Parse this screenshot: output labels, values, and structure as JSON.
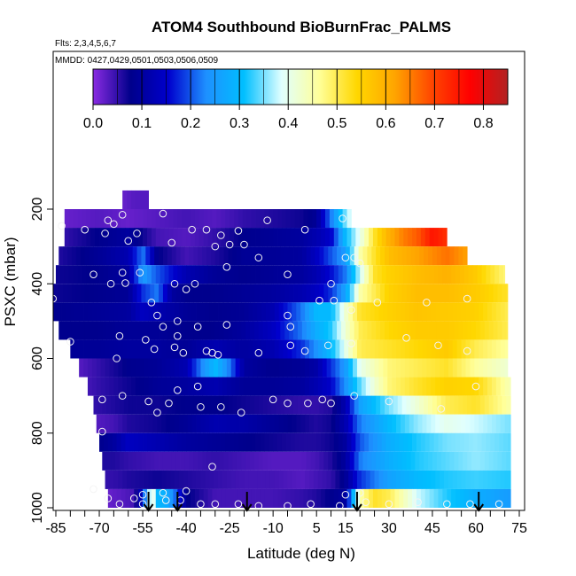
{
  "chart_data": {
    "type": "heatmap",
    "title": "ATOM4 Southbound BioBurnFrac_PALMS",
    "flights_note": "Flts: 2,3,4,5,6,7",
    "dates_note": "MMDD: 0427,0429,0501,0503,0506,0509",
    "xlabel": "Latitude (deg N)",
    "ylabel": "PSXC (mbar)",
    "xlim": [
      -88,
      78
    ],
    "ylim": [
      1010,
      130
    ],
    "x_ticks": [
      -85,
      -70,
      -55,
      -40,
      -25,
      -10,
      5,
      15,
      30,
      45,
      60,
      75
    ],
    "x_minor_ticks": [
      -80,
      -75,
      -65,
      -60,
      -50,
      -45,
      -35,
      -30,
      -20,
      -15,
      -5,
      0,
      10,
      20,
      25,
      35,
      40,
      50,
      55,
      65,
      70
    ],
    "y_ticks": [
      200,
      400,
      600,
      800,
      1000
    ],
    "colorbar": {
      "range": [
        0,
        0.85
      ],
      "ticks": [
        0.0,
        0.1,
        0.2,
        0.3,
        0.4,
        0.5,
        0.6,
        0.7,
        0.8
      ],
      "tick_labels": [
        "0.0",
        "0.1",
        "0.2",
        "0.3",
        "0.4",
        "0.5",
        "0.6",
        "0.7",
        "0.8"
      ],
      "colors": [
        "#8a2be2",
        "#00008b",
        "#0000cd",
        "#1e90ff",
        "#00bfff",
        "#e0ffff",
        "#ffff99",
        "#ffd700",
        "#ffa500",
        "#ff4500",
        "#ff0000",
        "#b22222"
      ]
    },
    "pressure_levels": [
      175,
      225,
      275,
      325,
      375,
      425,
      475,
      525,
      575,
      625,
      675,
      725,
      775,
      825,
      875,
      925,
      975
    ],
    "latitude_extents": [
      [
        -62,
        -53
      ],
      [
        -82,
        17
      ],
      [
        -82,
        50
      ],
      [
        -84,
        57
      ],
      [
        -85,
        70
      ],
      [
        -87,
        71
      ],
      [
        -86,
        71
      ],
      [
        -84,
        71
      ],
      [
        -80,
        71
      ],
      [
        -77,
        71
      ],
      [
        -74,
        72
      ],
      [
        -72,
        72
      ],
      [
        -71,
        72
      ],
      [
        -70,
        72
      ],
      [
        -69,
        72
      ],
      [
        -68,
        72
      ],
      [
        -67,
        72
      ]
    ],
    "profile_arrows_lat": [
      -53,
      -43,
      -19,
      19,
      61
    ],
    "series": [
      {
        "name": "175 mbar",
        "x": [
          -62,
          -58,
          -53
        ],
        "values": [
          0.02,
          0.03,
          0.03
        ]
      },
      {
        "name": "225 mbar",
        "x": [
          -82,
          -70,
          -60,
          -50,
          -40,
          -30,
          -20,
          -10,
          0,
          5,
          10,
          15,
          17
        ],
        "values": [
          0.02,
          0.03,
          0.02,
          0.03,
          0.04,
          0.03,
          0.05,
          0.06,
          0.07,
          0.09,
          0.22,
          0.35,
          0.4
        ]
      },
      {
        "name": "275 mbar",
        "x": [
          -82,
          -70,
          -60,
          -50,
          -40,
          -30,
          -20,
          -10,
          0,
          5,
          10,
          15,
          20,
          25,
          30,
          35,
          40,
          45,
          50
        ],
        "values": [
          0.05,
          0.08,
          0.1,
          0.04,
          0.03,
          0.05,
          0.08,
          0.09,
          0.1,
          0.12,
          0.15,
          0.3,
          0.4,
          0.52,
          0.6,
          0.65,
          0.68,
          0.75,
          0.72
        ]
      },
      {
        "name": "325 mbar",
        "x": [
          -84,
          -70,
          -60,
          -55,
          -50,
          -40,
          -30,
          -20,
          -10,
          0,
          5,
          10,
          15,
          20,
          25,
          30,
          40,
          50,
          57
        ],
        "values": [
          0.06,
          0.09,
          0.12,
          0.22,
          0.08,
          0.04,
          0.06,
          0.09,
          0.09,
          0.1,
          0.14,
          0.2,
          0.25,
          0.45,
          0.52,
          0.58,
          0.62,
          0.66,
          0.62
        ]
      },
      {
        "name": "375 mbar",
        "x": [
          -85,
          -70,
          -60,
          -55,
          -50,
          -40,
          -30,
          -20,
          -10,
          0,
          5,
          10,
          15,
          20,
          25,
          30,
          40,
          50,
          60,
          70
        ],
        "values": [
          0.07,
          0.08,
          0.1,
          0.25,
          0.2,
          0.12,
          0.09,
          0.08,
          0.09,
          0.1,
          0.12,
          0.16,
          0.22,
          0.38,
          0.52,
          0.55,
          0.58,
          0.6,
          0.56,
          0.48
        ]
      },
      {
        "name": "425 mbar",
        "x": [
          -87,
          -70,
          -60,
          -55,
          -50,
          -45,
          -40,
          -30,
          -20,
          -10,
          0,
          5,
          10,
          15,
          20,
          30,
          40,
          50,
          60,
          71
        ],
        "values": [
          0.07,
          0.08,
          0.09,
          0.18,
          0.22,
          0.1,
          0.08,
          0.08,
          0.09,
          0.1,
          0.12,
          0.14,
          0.18,
          0.26,
          0.45,
          0.55,
          0.58,
          0.58,
          0.56,
          0.52
        ]
      },
      {
        "name": "475 mbar",
        "x": [
          -86,
          -70,
          -60,
          -55,
          -50,
          -40,
          -30,
          -20,
          -10,
          0,
          5,
          10,
          15,
          20,
          30,
          40,
          50,
          60,
          71
        ],
        "values": [
          0.08,
          0.09,
          0.1,
          0.14,
          0.12,
          0.09,
          0.08,
          0.09,
          0.12,
          0.22,
          0.3,
          0.3,
          0.42,
          0.52,
          0.55,
          0.57,
          0.56,
          0.55,
          0.5
        ]
      },
      {
        "name": "525 mbar",
        "x": [
          -84,
          -70,
          -60,
          -50,
          -40,
          -30,
          -20,
          -10,
          0,
          5,
          10,
          15,
          20,
          30,
          40,
          50,
          60,
          71
        ],
        "values": [
          0.08,
          0.08,
          0.09,
          0.09,
          0.08,
          0.08,
          0.1,
          0.14,
          0.22,
          0.28,
          0.32,
          0.42,
          0.5,
          0.54,
          0.56,
          0.56,
          0.54,
          0.5
        ]
      },
      {
        "name": "575 mbar",
        "x": [
          -80,
          -70,
          -60,
          -50,
          -40,
          -30,
          -20,
          -10,
          0,
          5,
          10,
          15,
          20,
          30,
          40,
          50,
          60,
          71
        ],
        "values": [
          0.09,
          0.09,
          0.1,
          0.1,
          0.09,
          0.12,
          0.1,
          0.12,
          0.18,
          0.24,
          0.3,
          0.4,
          0.5,
          0.52,
          0.54,
          0.56,
          0.5,
          0.46
        ]
      },
      {
        "name": "625 mbar",
        "x": [
          -77,
          -70,
          -60,
          -50,
          -40,
          -35,
          -30,
          -25,
          -20,
          -10,
          0,
          5,
          10,
          15,
          20,
          30,
          40,
          50,
          60,
          71
        ],
        "values": [
          0.03,
          0.05,
          0.08,
          0.09,
          0.12,
          0.22,
          0.3,
          0.22,
          0.1,
          0.08,
          0.09,
          0.11,
          0.18,
          0.25,
          0.4,
          0.48,
          0.5,
          0.52,
          0.46,
          0.42
        ]
      },
      {
        "name": "675 mbar",
        "x": [
          -74,
          -70,
          -60,
          -50,
          -40,
          -30,
          -20,
          -10,
          0,
          5,
          10,
          15,
          20,
          25,
          30,
          40,
          50,
          60,
          72
        ],
        "values": [
          0.04,
          0.05,
          0.07,
          0.09,
          0.1,
          0.12,
          0.09,
          0.09,
          0.1,
          0.12,
          0.15,
          0.24,
          0.34,
          0.42,
          0.48,
          0.52,
          0.55,
          0.54,
          0.44
        ]
      },
      {
        "name": "725 mbar",
        "x": [
          -72,
          -65,
          -60,
          -50,
          -40,
          -30,
          -20,
          -10,
          0,
          5,
          10,
          15,
          20,
          30,
          40,
          50,
          60,
          72
        ],
        "values": [
          0.05,
          0.06,
          0.07,
          0.07,
          0.08,
          0.08,
          0.07,
          0.06,
          0.05,
          0.05,
          0.06,
          0.12,
          0.26,
          0.35,
          0.42,
          0.5,
          0.52,
          0.45
        ]
      },
      {
        "name": "775 mbar",
        "x": [
          -71,
          -65,
          -60,
          -50,
          -40,
          -30,
          -20,
          -10,
          0,
          5,
          10,
          15,
          20,
          30,
          40,
          50,
          60,
          72
        ],
        "values": [
          0.03,
          0.04,
          0.06,
          0.07,
          0.09,
          0.12,
          0.11,
          0.09,
          0.07,
          0.06,
          0.07,
          0.12,
          0.22,
          0.3,
          0.36,
          0.4,
          0.38,
          0.35
        ]
      },
      {
        "name": "825 mbar",
        "x": [
          -70,
          -65,
          -60,
          -50,
          -40,
          -30,
          -20,
          -10,
          0,
          5,
          10,
          15,
          20,
          30,
          40,
          50,
          60,
          72
        ],
        "values": [
          0.08,
          0.1,
          0.14,
          0.12,
          0.1,
          0.09,
          0.08,
          0.07,
          0.06,
          0.06,
          0.07,
          0.1,
          0.2,
          0.28,
          0.32,
          0.35,
          0.36,
          0.34
        ]
      },
      {
        "name": "875 mbar",
        "x": [
          -69,
          -65,
          -60,
          -50,
          -40,
          -30,
          -20,
          -10,
          0,
          5,
          10,
          15,
          20,
          30,
          40,
          50,
          60,
          72
        ],
        "values": [
          0.06,
          0.06,
          0.05,
          0.04,
          0.04,
          0.05,
          0.04,
          0.03,
          0.03,
          0.04,
          0.06,
          0.1,
          0.22,
          0.28,
          0.32,
          0.34,
          0.36,
          0.34
        ]
      },
      {
        "name": "925 mbar",
        "x": [
          -68,
          -65,
          -60,
          -50,
          -40,
          -30,
          -20,
          -10,
          0,
          5,
          10,
          15,
          20,
          30,
          40,
          50,
          60,
          72
        ],
        "values": [
          0.05,
          0.05,
          0.06,
          0.07,
          0.06,
          0.05,
          0.04,
          0.04,
          0.03,
          0.04,
          0.05,
          0.09,
          0.18,
          0.26,
          0.3,
          0.32,
          0.33,
          0.32
        ]
      },
      {
        "name": "975 mbar",
        "x": [
          -67,
          -62,
          -58,
          -55,
          -52,
          -50,
          -47,
          -44,
          -40,
          -30,
          -20,
          -10,
          0,
          5,
          10,
          15,
          20,
          25,
          30,
          40,
          50,
          60,
          72
        ],
        "values": [
          0.02,
          0.03,
          0.04,
          0.15,
          0.45,
          0.3,
          0.28,
          0.22,
          0.08,
          0.04,
          0.04,
          0.04,
          0.05,
          0.06,
          0.08,
          0.1,
          0.45,
          0.52,
          0.5,
          0.38,
          0.32,
          0.28,
          0.25
        ]
      }
    ],
    "observations": [
      [
        -83,
        245
      ],
      [
        -75,
        255
      ],
      [
        -67,
        230
      ],
      [
        -65,
        240
      ],
      [
        -62,
        215
      ],
      [
        -48,
        212
      ],
      [
        -68,
        265
      ],
      [
        -57,
        265
      ],
      [
        -60,
        285
      ],
      [
        -45,
        290
      ],
      [
        -38,
        255
      ],
      [
        -33,
        255
      ],
      [
        -28,
        270
      ],
      [
        -22,
        258
      ],
      [
        -12,
        230
      ],
      [
        1,
        255
      ],
      [
        14,
        225
      ],
      [
        -62,
        370
      ],
      [
        -72,
        375
      ],
      [
        -66,
        400
      ],
      [
        -61,
        398
      ],
      [
        -56,
        370
      ],
      [
        -40,
        415
      ],
      [
        -44,
        400
      ],
      [
        -37,
        400
      ],
      [
        -26,
        355
      ],
      [
        -25,
        295
      ],
      [
        -30,
        300
      ],
      [
        -20,
        295
      ],
      [
        -15,
        330
      ],
      [
        -5,
        375
      ],
      [
        10,
        400
      ],
      [
        15,
        330
      ],
      [
        18,
        330
      ],
      [
        20,
        345
      ],
      [
        -86,
        440
      ],
      [
        -52,
        450
      ],
      [
        -50,
        485
      ],
      [
        -43,
        500
      ],
      [
        -36,
        515
      ],
      [
        -26,
        510
      ],
      [
        -4,
        515
      ],
      [
        -5,
        485
      ],
      [
        6,
        445
      ],
      [
        11,
        445
      ],
      [
        17,
        470
      ],
      [
        26,
        450
      ],
      [
        43,
        450
      ],
      [
        57,
        440
      ],
      [
        -48,
        515
      ],
      [
        -43,
        540
      ],
      [
        -63,
        540
      ],
      [
        -51,
        575
      ],
      [
        -44,
        570
      ],
      [
        -41,
        585
      ],
      [
        -31,
        585
      ],
      [
        -15,
        585
      ],
      [
        -4,
        565
      ],
      [
        1,
        580
      ],
      [
        9,
        565
      ],
      [
        17,
        560
      ],
      [
        36,
        545
      ],
      [
        47,
        565
      ],
      [
        57,
        580
      ],
      [
        -80,
        555
      ],
      [
        -64,
        600
      ],
      [
        -54,
        550
      ],
      [
        -33,
        580
      ],
      [
        -29,
        590
      ],
      [
        -43,
        685
      ],
      [
        -36,
        675
      ],
      [
        -69,
        710
      ],
      [
        -62,
        700
      ],
      [
        -53,
        715
      ],
      [
        -50,
        745
      ],
      [
        -46,
        720
      ],
      [
        -35,
        730
      ],
      [
        -28,
        730
      ],
      [
        -21,
        745
      ],
      [
        -10,
        710
      ],
      [
        -5,
        720
      ],
      [
        2,
        720
      ],
      [
        7,
        710
      ],
      [
        10,
        720
      ],
      [
        18,
        700
      ],
      [
        30,
        715
      ],
      [
        48,
        735
      ],
      [
        60,
        675
      ],
      [
        -69,
        796
      ],
      [
        -31,
        890
      ],
      [
        -72,
        950
      ],
      [
        -67,
        975
      ],
      [
        -63,
        990
      ],
      [
        -58,
        975
      ],
      [
        -55,
        990
      ],
      [
        -47,
        980
      ],
      [
        -42,
        980
      ],
      [
        -35,
        990
      ],
      [
        -30,
        990
      ],
      [
        -22,
        990
      ],
      [
        -15,
        995
      ],
      [
        -5,
        995
      ],
      [
        3,
        990
      ],
      [
        13,
        995
      ],
      [
        22,
        985
      ],
      [
        30,
        990
      ],
      [
        40,
        985
      ],
      [
        50,
        990
      ],
      [
        58,
        990
      ],
      [
        68,
        990
      ],
      [
        -55,
        965
      ],
      [
        -48,
        960
      ],
      [
        -40,
        955
      ],
      [
        15,
        965
      ],
      [
        20,
        960
      ]
    ]
  }
}
